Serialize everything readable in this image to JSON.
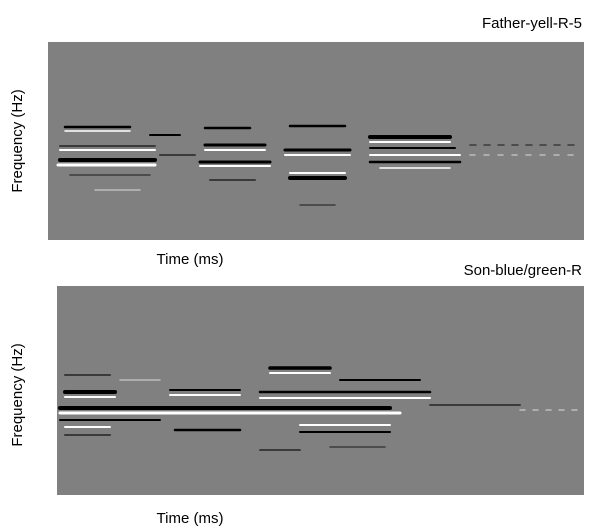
{
  "panels": [
    {
      "title": "Father-yell-R-5",
      "y_label": "Frequency (Hz)",
      "x_label": "Time (ms)"
    },
    {
      "title": "Son-blue/green-R",
      "y_label": "Frequency (Hz)",
      "x_label": "Time (ms)"
    }
  ]
}
